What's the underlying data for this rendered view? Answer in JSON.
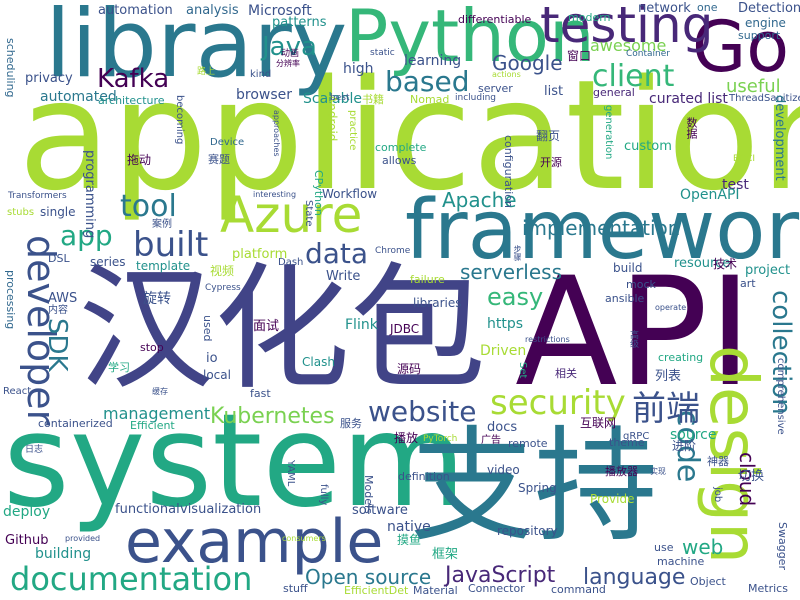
{
  "words": [
    {
      "text": "application",
      "color": "#a8db34"
    },
    {
      "text": "system",
      "color": "#22a884"
    },
    {
      "text": "汉化包",
      "color": "#414487"
    },
    {
      "text": "API",
      "color": "#440154"
    },
    {
      "text": "支持",
      "color": "#2a788e"
    },
    {
      "text": "framework",
      "color": "#2a788e"
    },
    {
      "text": "library",
      "color": "#2a788e"
    },
    {
      "text": "Python",
      "color": "#35b779"
    },
    {
      "text": "Go",
      "color": "#440154"
    },
    {
      "text": "design",
      "color": "#a8db34"
    },
    {
      "text": "example",
      "color": "#3b528b"
    },
    {
      "text": "Azure",
      "color": "#a8db34"
    },
    {
      "text": "testing",
      "color": "#482878"
    },
    {
      "text": "documentation",
      "color": "#22a884"
    },
    {
      "text": "developer",
      "color": "#3b528b"
    },
    {
      "text": "security",
      "color": "#a8db34"
    },
    {
      "text": "code",
      "color": "#2a788e"
    },
    {
      "text": "collection",
      "color": "#2a788e"
    },
    {
      "text": "built",
      "color": "#3b528b"
    },
    {
      "text": "website",
      "color": "#3b528b"
    },
    {
      "text": "前端",
      "color": "#3b528b"
    },
    {
      "text": "client",
      "color": "#35b779"
    },
    {
      "text": "based",
      "color": "#2a788e"
    },
    {
      "text": "Kafka",
      "color": "#440154"
    },
    {
      "text": "data",
      "color": "#3b528b"
    },
    {
      "text": "tool",
      "color": "#2a788e"
    },
    {
      "text": "app",
      "color": "#22a884"
    },
    {
      "text": "Java",
      "color": "#21918c"
    },
    {
      "text": "SDK",
      "color": "#2a788e"
    },
    {
      "text": "easy",
      "color": "#35b779"
    },
    {
      "text": "JavaScript",
      "color": "#482878"
    },
    {
      "text": "Open source",
      "color": "#2a788e"
    },
    {
      "text": "language",
      "color": "#3b528b"
    },
    {
      "text": "Kubernetes",
      "color": "#7ad151"
    },
    {
      "text": "cloud",
      "color": "#440154"
    },
    {
      "text": "serverless",
      "color": "#2a788e"
    },
    {
      "text": "implementation",
      "color": "#2a788e"
    },
    {
      "text": "Apache",
      "color": "#21918c"
    },
    {
      "text": "Google",
      "color": "#3b528b"
    },
    {
      "text": "web",
      "color": "#22a884"
    },
    {
      "text": "management",
      "color": "#21918c"
    },
    {
      "text": "automation",
      "color": "#3b528b"
    },
    {
      "text": "analysis",
      "color": "#31688e"
    },
    {
      "text": "Microsoft",
      "color": "#3b528b"
    },
    {
      "text": "patterns",
      "color": "#21918c"
    },
    {
      "text": "network",
      "color": "#3b528b"
    },
    {
      "text": "Detection",
      "color": "#3b528b"
    },
    {
      "text": "engine",
      "color": "#31688e"
    },
    {
      "text": "support",
      "color": "#31688e"
    },
    {
      "text": "differentiable",
      "color": "#440154"
    },
    {
      "text": "modern",
      "color": "#22a884"
    },
    {
      "text": "one",
      "color": "#31688e"
    },
    {
      "text": "awesome",
      "color": "#7ad151"
    },
    {
      "text": "learning",
      "color": "#3b528b"
    },
    {
      "text": "static",
      "color": "#3b528b"
    },
    {
      "text": "窗口",
      "color": "#440154"
    },
    {
      "text": "Container",
      "color": "#31688e"
    },
    {
      "text": "useful",
      "color": "#7ad151"
    },
    {
      "text": "curated list",
      "color": "#482878"
    },
    {
      "text": "ThreadSanitizer",
      "color": "#3b528b"
    },
    {
      "text": "high",
      "color": "#3b528b"
    },
    {
      "text": "privacy",
      "color": "#3b528b"
    },
    {
      "text": "automated",
      "color": "#2a788e"
    },
    {
      "text": "architecture",
      "color": "#21918c"
    },
    {
      "text": "browser",
      "color": "#3b528b"
    },
    {
      "text": "Scalable",
      "color": "#21918c"
    },
    {
      "text": "书籍",
      "color": "#a8db34"
    },
    {
      "text": "Nomad",
      "color": "#a8db34"
    },
    {
      "text": "including",
      "color": "#3b528b"
    },
    {
      "text": "server",
      "color": "#3b528b"
    },
    {
      "text": "list",
      "color": "#3b528b"
    },
    {
      "text": "general",
      "color": "#482878"
    },
    {
      "text": "kind",
      "color": "#3b528b"
    },
    {
      "text": "分辨率",
      "color": "#440154"
    },
    {
      "text": "动画",
      "color": "#440154"
    },
    {
      "text": "actions",
      "color": "#a8db34"
    },
    {
      "text": "scheduling",
      "color": "#31688e"
    },
    {
      "text": "拖动",
      "color": "#440154"
    },
    {
      "text": "赛题",
      "color": "#3b528b"
    },
    {
      "text": "Device",
      "color": "#31688e"
    },
    {
      "text": "programming",
      "color": "#3b528b"
    },
    {
      "text": "test",
      "color": "#482878"
    },
    {
      "text": "development",
      "color": "#2a788e"
    },
    {
      "text": "OpenAPI",
      "color": "#21918c"
    },
    {
      "text": "custom",
      "color": "#22a884"
    },
    {
      "text": "complete",
      "color": "#22a884"
    },
    {
      "text": "allows",
      "color": "#3b528b"
    },
    {
      "text": "开源",
      "color": "#440154"
    },
    {
      "text": "翻页",
      "color": "#3b528b"
    },
    {
      "text": "configuration",
      "color": "#3b528b"
    },
    {
      "text": "数据",
      "color": "#440154"
    },
    {
      "text": "Workflow",
      "color": "#3b528b"
    },
    {
      "text": "interesting",
      "color": "#3b528b"
    },
    {
      "text": "State",
      "color": "#3b528b"
    },
    {
      "text": "CPython",
      "color": "#22a884"
    },
    {
      "text": "Transformers",
      "color": "#3b528b"
    },
    {
      "text": "stubs",
      "color": "#a8db34"
    },
    {
      "text": "single",
      "color": "#3b528b"
    },
    {
      "text": "案例",
      "color": "#3b528b"
    },
    {
      "text": "platform",
      "color": "#a8db34"
    },
    {
      "text": "template",
      "color": "#21918c"
    },
    {
      "text": "series",
      "color": "#3b528b"
    },
    {
      "text": "视频",
      "color": "#a8db34"
    },
    {
      "text": "build",
      "color": "#3b528b"
    },
    {
      "text": "resource",
      "color": "#21918c"
    },
    {
      "text": "技术",
      "color": "#440154"
    },
    {
      "text": "project",
      "color": "#21918c"
    },
    {
      "text": "DSL",
      "color": "#3b528b"
    },
    {
      "text": "Dash",
      "color": "#3b528b"
    },
    {
      "text": "Chrome",
      "color": "#3b528b"
    },
    {
      "text": "Write",
      "color": "#3b528b"
    },
    {
      "text": "failure",
      "color": "#a8db34"
    },
    {
      "text": "mock",
      "color": "#3b528b"
    },
    {
      "text": "ansible",
      "color": "#3b528b"
    },
    {
      "text": "art",
      "color": "#3b528b"
    },
    {
      "text": "processing",
      "color": "#31688e"
    },
    {
      "text": "AWS",
      "color": "#3b528b"
    },
    {
      "text": "旋转",
      "color": "#3b528b"
    },
    {
      "text": "内容",
      "color": "#3b528b"
    },
    {
      "text": "Cypress",
      "color": "#3b528b"
    },
    {
      "text": "libraries",
      "color": "#3b528b"
    },
    {
      "text": "https",
      "color": "#21918c"
    },
    {
      "text": "面试",
      "color": "#440154"
    },
    {
      "text": "Flink",
      "color": "#21918c"
    },
    {
      "text": "JDBC",
      "color": "#440154"
    },
    {
      "text": "restrictions",
      "color": "#3b528b"
    },
    {
      "text": "stop",
      "color": "#440154"
    },
    {
      "text": "used",
      "color": "#3b528b"
    },
    {
      "text": "Driven",
      "color": "#a8db34"
    },
    {
      "text": "学习",
      "color": "#22a884"
    },
    {
      "text": "io",
      "color": "#3b528b"
    },
    {
      "text": "local",
      "color": "#3b528b"
    },
    {
      "text": "Clash",
      "color": "#21918c"
    },
    {
      "text": "源码",
      "color": "#440154"
    },
    {
      "text": "相关",
      "color": "#482878"
    },
    {
      "text": "creating",
      "color": "#22a884"
    },
    {
      "text": "列表",
      "color": "#3b528b"
    },
    {
      "text": "Set",
      "color": "#22a884"
    },
    {
      "text": "React",
      "color": "#3b528b"
    },
    {
      "text": "fast",
      "color": "#3b528b"
    },
    {
      "text": "containerized",
      "color": "#3b528b"
    },
    {
      "text": "Efficient",
      "color": "#22a884"
    },
    {
      "text": "服务",
      "color": "#3b528b"
    },
    {
      "text": "docs",
      "color": "#3b528b"
    },
    {
      "text": "source",
      "color": "#22a884"
    },
    {
      "text": "互联网",
      "color": "#440154"
    },
    {
      "text": "theme",
      "color": "#3b528b"
    },
    {
      "text": "gRPC",
      "color": "#3b528b"
    },
    {
      "text": "进阶",
      "color": "#3b528b"
    },
    {
      "text": "神器",
      "color": "#3b528b"
    },
    {
      "text": "播放",
      "color": "#440154"
    },
    {
      "text": "广告",
      "color": "#440154"
    },
    {
      "text": "remote",
      "color": "#3b528b"
    },
    {
      "text": "播放器",
      "color": "#440154"
    },
    {
      "text": "切换",
      "color": "#3b528b"
    },
    {
      "text": "YAML",
      "color": "#3b528b"
    },
    {
      "text": "definition",
      "color": "#3b528b"
    },
    {
      "text": "video",
      "color": "#3b528b"
    },
    {
      "text": "Spring",
      "color": "#3b528b"
    },
    {
      "text": "Provide",
      "color": "#a8db34"
    },
    {
      "text": "job",
      "color": "#3b528b"
    },
    {
      "text": "deploy",
      "color": "#22a884"
    },
    {
      "text": "functional",
      "color": "#3b528b"
    },
    {
      "text": "visualization",
      "color": "#3b528b"
    },
    {
      "text": "software",
      "color": "#3b528b"
    },
    {
      "text": "Models",
      "color": "#3b528b"
    },
    {
      "text": "native",
      "color": "#3b528b"
    },
    {
      "text": "Github",
      "color": "#440154"
    },
    {
      "text": "building",
      "color": "#21918c"
    },
    {
      "text": "repository",
      "color": "#3b528b"
    },
    {
      "text": "摸鱼",
      "color": "#22a884"
    },
    {
      "text": "框架",
      "color": "#22a884"
    },
    {
      "text": "use",
      "color": "#3b528b"
    },
    {
      "text": "machine",
      "color": "#3b528b"
    },
    {
      "text": "Object",
      "color": "#3b528b"
    },
    {
      "text": "Swagger",
      "color": "#3b528b"
    },
    {
      "text": "stuff",
      "color": "#3b528b"
    },
    {
      "text": "EfficientDet",
      "color": "#a8db34"
    },
    {
      "text": "Material",
      "color": "#3b528b"
    },
    {
      "text": "Connector",
      "color": "#3b528b"
    },
    {
      "text": "command",
      "color": "#3b528b"
    },
    {
      "text": "Metrics",
      "color": "#3b528b"
    },
    {
      "text": "Android",
      "color": "#a8db34"
    },
    {
      "text": "best",
      "color": "#3b528b"
    },
    {
      "text": "practice",
      "color": "#a8db34"
    },
    {
      "text": "becoming",
      "color": "#3b528b"
    },
    {
      "text": "approaches",
      "color": "#3b528b"
    },
    {
      "text": "generation",
      "color": "#22a884"
    },
    {
      "text": "BDCI",
      "color": "#a8db34"
    },
    {
      "text": "实现",
      "color": "#3b528b"
    },
    {
      "text": "comprehensive",
      "color": "#3b528b"
    },
    {
      "text": "高级",
      "color": "#3b528b"
    },
    {
      "text": "operate",
      "color": "#3b528b"
    },
    {
      "text": "fully",
      "color": "#3b528b"
    },
    {
      "text": "provided",
      "color": "#3b528b"
    },
    {
      "text": "consumers",
      "color": "#a8db34"
    },
    {
      "text": "PyTorch",
      "color": "#a8db34"
    },
    {
      "text": "缓存",
      "color": "#3b528b"
    },
    {
      "text": "日志",
      "color": "#3b528b"
    },
    {
      "text": "步骤",
      "color": "#3b528b"
    },
    {
      "text": "路上",
      "color": "#a8db34"
    }
  ]
}
